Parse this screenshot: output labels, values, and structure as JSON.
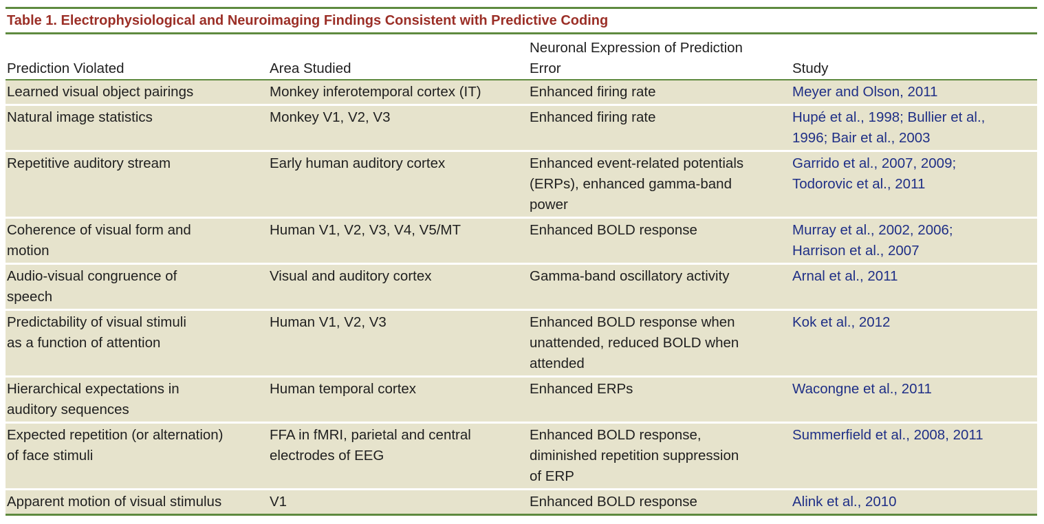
{
  "caption": "Table 1.  Electrophysiological and Neuroimaging Findings Consistent with Predictive Coding",
  "columns": [
    "Prediction Violated",
    "Area Studied",
    "Neuronal Expression of Prediction\nError",
    "Study"
  ],
  "rows": [
    {
      "prediction": "Learned visual object pairings",
      "area": "Monkey inferotemporal cortex (IT)",
      "expression": "Enhanced firing rate",
      "study": "Meyer and Olson, 2011"
    },
    {
      "prediction": "Natural image statistics",
      "area": "Monkey V1, V2, V3",
      "expression": "Enhanced firing rate",
      "study": "Hupé et al., 1998; Bullier et al.,\n1996; Bair et al., 2003"
    },
    {
      "prediction": "Repetitive auditory stream",
      "area": "Early human auditory cortex",
      "expression": "Enhanced event-related potentials\n(ERPs), enhanced gamma-band\npower",
      "study": "Garrido et al., 2007, 2009;\nTodorovic et al., 2011"
    },
    {
      "prediction": "Coherence of visual form and\nmotion",
      "area": "Human V1, V2, V3, V4, V5/MT",
      "expression": "Enhanced BOLD response",
      "study": "Murray et al., 2002, 2006;\nHarrison et al., 2007"
    },
    {
      "prediction": "Audio-visual congruence of\nspeech",
      "area": "Visual and auditory cortex",
      "expression": "Gamma-band oscillatory activity",
      "study": "Arnal et al., 2011"
    },
    {
      "prediction": "Predictability of visual stimuli\nas a function of attention",
      "area": "Human V1, V2, V3",
      "expression": "Enhanced BOLD response when\nunattended, reduced BOLD when\nattended",
      "study": "Kok et al., 2012"
    },
    {
      "prediction": "Hierarchical expectations in\nauditory sequences",
      "area": "Human temporal cortex",
      "expression": "Enhanced ERPs",
      "study": "Wacongne et al., 2011"
    },
    {
      "prediction": "Expected repetition (or alternation)\nof face stimuli",
      "area": "FFA in fMRI, parietal and central\nelectrodes of EEG",
      "expression": "Enhanced BOLD response,\ndiminished repetition suppression\nof ERP",
      "study": "Summerfield et al., 2008, 2011"
    },
    {
      "prediction": "Apparent motion of visual stimulus",
      "area": "V1",
      "expression": "Enhanced BOLD response",
      "study": "Alink et al., 2010"
    }
  ],
  "colors": {
    "caption": "#9b2f27",
    "rule": "#5e8a3f",
    "row_background": "#e6e3cc",
    "citation": "#1f2f86"
  }
}
